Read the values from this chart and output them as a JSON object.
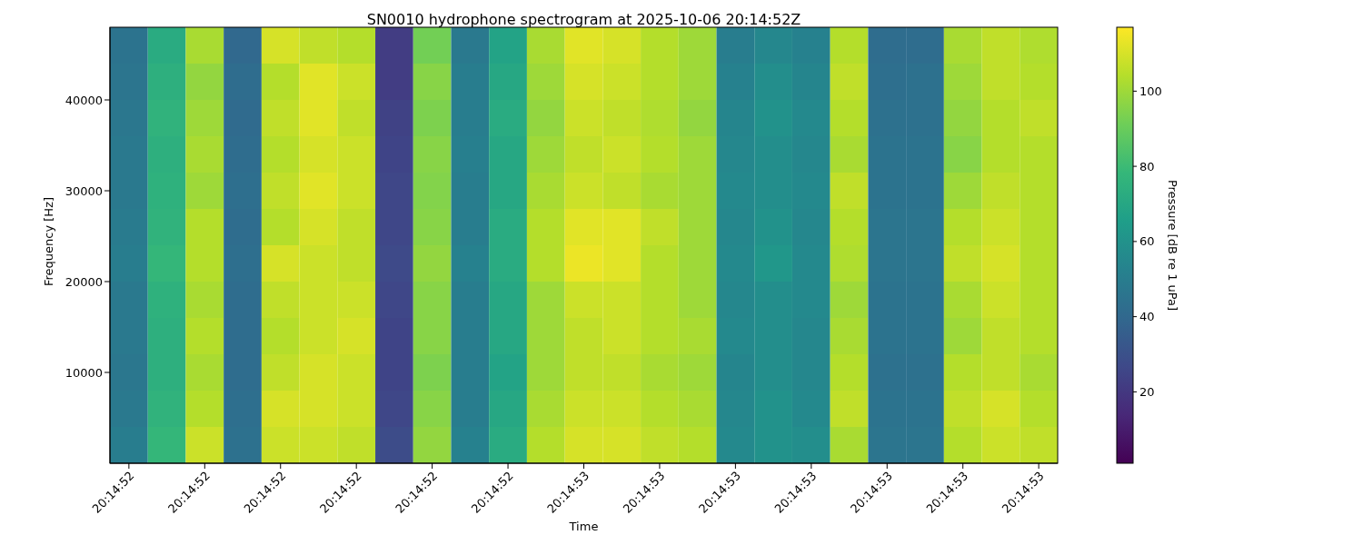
{
  "chart_data": {
    "type": "heatmap",
    "title": "SN0010 hydrophone spectrogram at 2025-10-06 20:14:52Z",
    "xlabel": "Time",
    "ylabel": "Frequency [Hz]",
    "clabel": "Pressure [dB re 1 uPa]",
    "categories": [
      "20:14:52",
      null,
      "20:14:52",
      null,
      "20:14:52",
      null,
      "20:14:52",
      null,
      "20:14:52",
      null,
      "20:14:52",
      null,
      "20:14:53",
      null,
      "20:14:53",
      null,
      "20:14:53",
      null,
      "20:14:53",
      null,
      "20:14:53",
      null,
      "20:14:53",
      null,
      "20:14:53"
    ],
    "ylim": [
      0,
      48000
    ],
    "yticks": [
      10000,
      20000,
      30000,
      40000
    ],
    "clim": [
      1,
      117
    ],
    "cticks": [
      20,
      40,
      60,
      80,
      100
    ],
    "cells": [
      [
        45,
        72,
        102,
        40,
        110,
        106,
        104,
        22,
        92,
        48,
        68,
        102,
        112,
        110,
        104,
        100,
        50,
        55,
        52,
        104,
        42,
        42,
        102,
        106,
        103
      ],
      [
        46,
        74,
        98,
        42,
        104,
        112,
        108,
        22,
        96,
        50,
        70,
        100,
        110,
        108,
        104,
        100,
        52,
        58,
        54,
        106,
        43,
        44,
        100,
        106,
        104
      ],
      [
        47,
        76,
        100,
        41,
        106,
        112,
        106,
        24,
        94,
        50,
        72,
        98,
        108,
        106,
        103,
        98,
        54,
        60,
        56,
        104,
        44,
        44,
        98,
        104,
        106
      ],
      [
        48,
        74,
        102,
        42,
        104,
        110,
        108,
        25,
        96,
        51,
        70,
        100,
        106,
        108,
        104,
        100,
        55,
        58,
        55,
        102,
        45,
        45,
        96,
        104,
        104
      ],
      [
        48,
        75,
        100,
        43,
        106,
        112,
        108,
        26,
        95,
        50,
        70,
        102,
        108,
        106,
        102,
        100,
        56,
        58,
        56,
        106,
        45,
        45,
        100,
        106,
        104
      ],
      [
        49,
        76,
        104,
        42,
        104,
        110,
        106,
        26,
        96,
        50,
        72,
        104,
        112,
        112,
        106,
        100,
        55,
        60,
        55,
        104,
        46,
        46,
        104,
        108,
        104
      ],
      [
        50,
        78,
        104,
        43,
        110,
        108,
        106,
        27,
        98,
        52,
        72,
        104,
        114,
        112,
        104,
        100,
        56,
        62,
        56,
        103,
        46,
        46,
        106,
        110,
        104
      ],
      [
        48,
        75,
        102,
        42,
        106,
        108,
        108,
        26,
        96,
        50,
        70,
        100,
        108,
        108,
        104,
        100,
        55,
        58,
        56,
        100,
        45,
        45,
        102,
        108,
        104
      ],
      [
        48,
        74,
        104,
        42,
        104,
        108,
        110,
        25,
        96,
        50,
        70,
        100,
        106,
        108,
        104,
        102,
        56,
        58,
        55,
        102,
        45,
        45,
        100,
        106,
        104
      ],
      [
        47,
        74,
        102,
        42,
        106,
        110,
        108,
        25,
        94,
        50,
        68,
        100,
        106,
        106,
        102,
        100,
        54,
        58,
        55,
        104,
        44,
        44,
        104,
        106,
        102
      ],
      [
        48,
        76,
        104,
        43,
        110,
        110,
        108,
        26,
        96,
        50,
        70,
        102,
        108,
        108,
        104,
        102,
        55,
        60,
        56,
        106,
        45,
        45,
        106,
        110,
        104
      ],
      [
        50,
        78,
        108,
        44,
        108,
        108,
        106,
        28,
        98,
        52,
        72,
        104,
        110,
        110,
        106,
        104,
        56,
        60,
        58,
        102,
        46,
        46,
        104,
        108,
        106
      ]
    ]
  }
}
